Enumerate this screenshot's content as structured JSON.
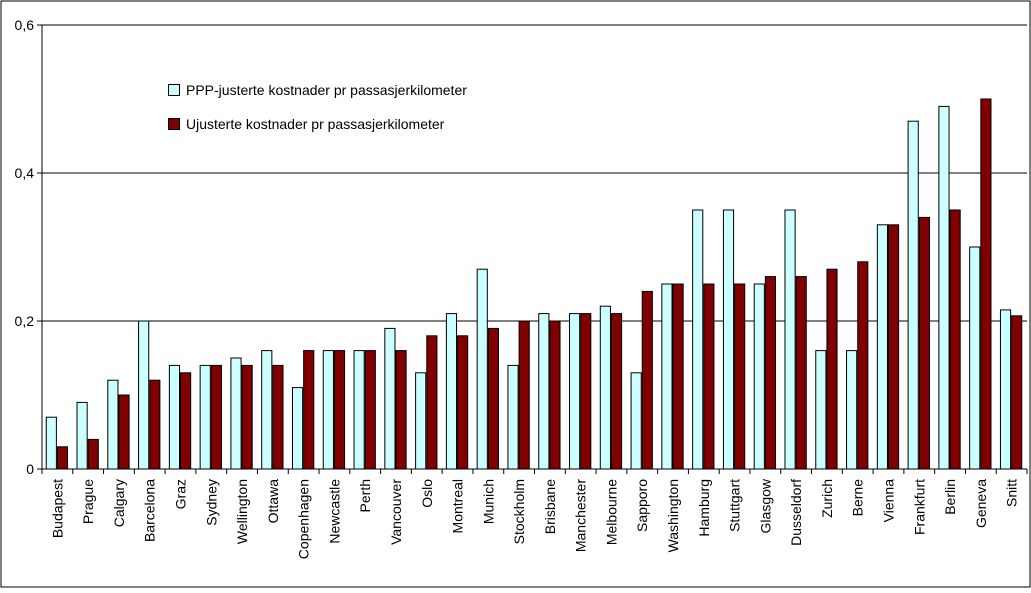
{
  "colors": {
    "series1": "#ccffff",
    "series2": "#800000",
    "grid": "#000000",
    "background": "#ffffff"
  },
  "legend": {
    "series1_label": "PPP-justerte kostnader pr passasjerkilometer",
    "series2_label": "Ujusterte kostnader pr passasjerkilometer"
  },
  "chart_data": {
    "type": "bar",
    "ylim": [
      0,
      0.6
    ],
    "yticks": [
      "0",
      "0,2",
      "0,4",
      "0,6"
    ],
    "ytick_values": [
      0,
      0.2,
      0.4,
      0.6
    ],
    "grid": true,
    "legend_position": "top-left",
    "categories": [
      "Budapest",
      "Prague",
      "Calgary",
      "Barcelona",
      "Graz",
      "Sydney",
      "Wellington",
      "Ottawa",
      "Copenhagen",
      "Newcastle",
      "Perth",
      "Vancouver",
      "Oslo",
      "Montreal",
      "Munich",
      "Stockholm",
      "Brisbane",
      "Manchester",
      "Melbourne",
      "Sapporo",
      "Washington",
      "Hamburg",
      "Stuttgart",
      "Glasgow",
      "Dusseldorf",
      "Zurich",
      "Berne",
      "Vienna",
      "Frankfurt",
      "Berlin",
      "Geneva",
      "Snitt"
    ],
    "series": [
      {
        "name": "PPP-justerte kostnader pr passasjerkilometer",
        "values": [
          0.07,
          0.09,
          0.12,
          0.2,
          0.14,
          0.14,
          0.15,
          0.16,
          0.11,
          0.16,
          0.16,
          0.19,
          0.13,
          0.21,
          0.27,
          0.14,
          0.21,
          0.21,
          0.22,
          0.13,
          0.25,
          0.35,
          0.35,
          0.25,
          0.35,
          0.16,
          0.16,
          0.33,
          0.47,
          0.49,
          0.3,
          0.215
        ]
      },
      {
        "name": "Ujusterte kostnader pr passasjerkilometer",
        "values": [
          0.03,
          0.04,
          0.1,
          0.12,
          0.13,
          0.14,
          0.14,
          0.14,
          0.16,
          0.16,
          0.16,
          0.16,
          0.18,
          0.18,
          0.19,
          0.2,
          0.2,
          0.21,
          0.21,
          0.24,
          0.25,
          0.25,
          0.25,
          0.26,
          0.26,
          0.27,
          0.28,
          0.33,
          0.34,
          0.35,
          0.5,
          0.207
        ]
      }
    ]
  }
}
